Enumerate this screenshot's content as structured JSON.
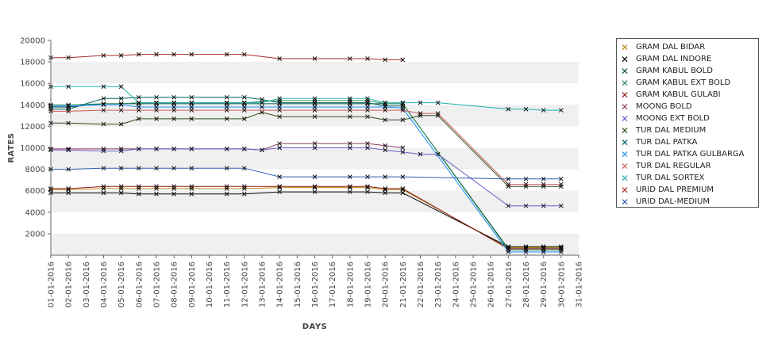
{
  "chart_data": {
    "type": "line",
    "xlabel": "DAYS",
    "ylabel": "RATES",
    "ylim": [
      0,
      20000
    ],
    "yticks": [
      2000,
      4000,
      6000,
      8000,
      10000,
      12000,
      14000,
      16000,
      18000,
      20000
    ],
    "grid": "alternating horizontal bands",
    "legend_position": "right",
    "x_tick_labels": [
      "01-01-2016",
      "02-01-2016",
      "03-01-2016",
      "04-01-2016",
      "05-01-2016",
      "06-01-2016",
      "07-01-2016",
      "08-01-2016",
      "09-01-2016",
      "10-01-2016",
      "11-01-2016",
      "12-01-2016",
      "13-01-2016",
      "14-01-2016",
      "15-01-2016",
      "16-01-2016",
      "17-01-2016",
      "18-01-2016",
      "19-01-2016",
      "20-01-2016",
      "21-01-2016",
      "22-01-2016",
      "23-01-2016",
      "24-01-2016",
      "25-01-2016",
      "26-01-2016",
      "27-01-2016",
      "28-01-2016",
      "29-01-2016",
      "30-01-2016",
      "31-01-2016"
    ],
    "x_days": [
      1,
      2,
      4,
      5,
      6,
      7,
      8,
      9,
      11,
      12,
      13,
      14,
      16,
      18,
      19,
      20,
      21,
      22,
      23,
      27,
      28,
      29,
      30
    ],
    "series": [
      {
        "name": "GRAM DAL BIDAR",
        "color": "#b8860b",
        "values": [
          6100,
          6100,
          6200,
          6200,
          6200,
          6200,
          6200,
          6200,
          6200,
          6200,
          null,
          6300,
          6300,
          6300,
          6300,
          6100,
          6100,
          null,
          null,
          700,
          700,
          700,
          700
        ]
      },
      {
        "name": "GRAM DAL INDORE",
        "color": "#000000",
        "values": [
          5800,
          5800,
          5800,
          5800,
          5700,
          5700,
          5700,
          5700,
          5700,
          5700,
          null,
          5900,
          5900,
          5900,
          5900,
          5800,
          5800,
          null,
          null,
          800,
          800,
          800,
          800
        ]
      },
      {
        "name": "GRAM KABUL BOLD",
        "color": "#004d4d",
        "values": [
          13800,
          13800,
          14100,
          14100,
          14100,
          14100,
          14100,
          14100,
          14100,
          14100,
          null,
          14100,
          14100,
          14100,
          14100,
          14100,
          14100,
          null,
          null,
          600,
          600,
          600,
          600
        ]
      },
      {
        "name": "GRAM KABUL EXT BOLD",
        "color": "#2e8b57",
        "values": [
          14000,
          14000,
          14100,
          14100,
          14200,
          14200,
          14200,
          14200,
          14200,
          14200,
          null,
          14400,
          14400,
          14400,
          14400,
          14100,
          14100,
          null,
          null,
          500,
          500,
          500,
          500
        ]
      },
      {
        "name": "GRAM KABUL GULABI",
        "color": "#8b1a1a",
        "values": [
          6200,
          6200,
          6400,
          6400,
          6400,
          6400,
          6400,
          6400,
          6400,
          6400,
          null,
          6400,
          6400,
          6400,
          6400,
          6200,
          6200,
          null,
          null,
          600,
          600,
          600,
          600
        ]
      },
      {
        "name": "MOONG BOLD",
        "color": "#8b3a62",
        "values": [
          9900,
          9900,
          9900,
          9900,
          9900,
          9900,
          9900,
          9900,
          9900,
          9900,
          9800,
          10400,
          10400,
          10400,
          10400,
          10200,
          10000,
          null,
          null,
          null,
          null,
          null,
          null
        ]
      },
      {
        "name": "MOONG EXT BOLD",
        "color": "#6a5acd",
        "values": [
          9800,
          9800,
          9700,
          9700,
          9900,
          9900,
          9900,
          9900,
          9900,
          9900,
          9800,
          10000,
          10000,
          10000,
          10000,
          9800,
          9600,
          9400,
          9400,
          4600,
          4600,
          4600,
          4600
        ]
      },
      {
        "name": "TUR DAL MEDIUM",
        "color": "#2f4f1f",
        "values": [
          12300,
          12300,
          12200,
          12200,
          12700,
          12700,
          12700,
          12700,
          12700,
          12700,
          13300,
          12900,
          12900,
          12900,
          12900,
          12600,
          12600,
          13000,
          13000,
          6400,
          6400,
          6400,
          6400
        ]
      },
      {
        "name": "TUR DAL PATKA",
        "color": "#006060",
        "values": [
          13600,
          13600,
          14600,
          14600,
          14700,
          14700,
          14700,
          14700,
          14700,
          14700,
          14500,
          14200,
          14200,
          14200,
          14200,
          13900,
          13900,
          null,
          null,
          null,
          null,
          null,
          null
        ]
      },
      {
        "name": "TUR DAL PATKA GULBARGA",
        "color": "#1e90ff",
        "values": [
          13900,
          13900,
          14000,
          14000,
          13800,
          13800,
          13800,
          13800,
          13800,
          13800,
          13800,
          13800,
          13800,
          13800,
          13800,
          13800,
          13700,
          null,
          null,
          300,
          300,
          300,
          300
        ]
      },
      {
        "name": "TUR DAL REGULAR",
        "color": "#cd5c5c",
        "values": [
          13400,
          13400,
          13500,
          13500,
          13500,
          13500,
          13500,
          13500,
          13500,
          13500,
          null,
          13500,
          13500,
          13500,
          13500,
          13500,
          13500,
          13200,
          13200,
          6600,
          6600,
          6600,
          6600
        ]
      },
      {
        "name": "TUR DAL SORTEX",
        "color": "#20b2aa",
        "values": [
          15700,
          15700,
          15700,
          15700,
          14200,
          14200,
          14200,
          14200,
          14200,
          14200,
          14200,
          14600,
          14600,
          14600,
          14600,
          14200,
          14200,
          14200,
          14200,
          13600,
          13600,
          13500,
          13500
        ]
      },
      {
        "name": "URID DAL PREMIUM",
        "color": "#a52a2a",
        "values": [
          18400,
          18400,
          18600,
          18600,
          18700,
          18700,
          18700,
          18700,
          18700,
          18700,
          null,
          18300,
          18300,
          18300,
          18300,
          18200,
          18200,
          null,
          null,
          null,
          null,
          null,
          null
        ]
      },
      {
        "name": "URID DAL-MEDIUM",
        "color": "#2a5db0",
        "values": [
          8000,
          8000,
          8100,
          8100,
          8100,
          8100,
          8100,
          8100,
          8100,
          8100,
          null,
          7300,
          7300,
          7300,
          7300,
          7300,
          7300,
          null,
          null,
          7100,
          7100,
          7100,
          7100
        ]
      }
    ]
  }
}
